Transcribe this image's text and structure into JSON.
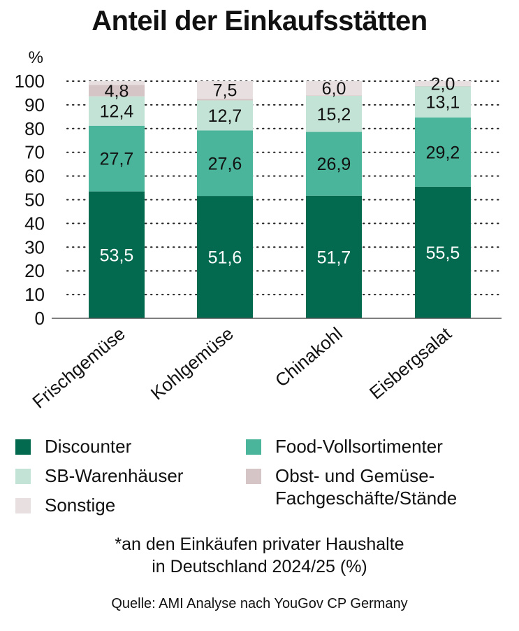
{
  "title": "Anteil der Einkaufsstätten",
  "footnote": [
    "*an den Einkäufen privater Haushalte",
    "in Deutschland 2024/25 (%)"
  ],
  "source": "Quelle: AMI Analyse nach YouGov CP Germany",
  "chart_data": {
    "type": "bar",
    "stacked": true,
    "title": "Anteil der Einkaufsstätten",
    "ylabel": "%",
    "xlabel": "",
    "ylim": [
      0,
      100
    ],
    "yticks": [
      0,
      10,
      20,
      30,
      40,
      50,
      60,
      70,
      80,
      90,
      100
    ],
    "grid": true,
    "legend_position": "bottom",
    "categories": [
      "Frischgemüse",
      "Kohlgemüse",
      "Chinakohl",
      "Eisbergsalat"
    ],
    "series": [
      {
        "name": "Discounter",
        "color": "#046a4f",
        "label_color": "#ffffff",
        "values": [
          53.5,
          51.6,
          51.7,
          55.5
        ],
        "labels": [
          "53,5",
          "51,6",
          "51,7",
          "55,5"
        ]
      },
      {
        "name": "Food-Vollsortimenter",
        "color": "#4ab59a",
        "label_color": "#111111",
        "values": [
          27.7,
          27.6,
          26.9,
          29.2
        ],
        "labels": [
          "27,7",
          "27,6",
          "26,9",
          "29,2"
        ]
      },
      {
        "name": "SB-Warenhäuser",
        "color": "#c3e3d6",
        "label_color": "#111111",
        "values": [
          12.4,
          12.7,
          15.2,
          13.1
        ],
        "labels": [
          "12,4",
          "12,7",
          "15,2",
          "13,1"
        ]
      },
      {
        "name": "Obst- und Gemüse-Fachgeschäfte/Stände",
        "color": "#d6c5c6",
        "label_color": "#111111",
        "values": [
          4.8,
          0.6,
          0.2,
          0.2
        ],
        "labels": [
          "4,8",
          "",
          "",
          ""
        ]
      },
      {
        "name": "Sonstige",
        "color": "#e8dfe1",
        "label_color": "#111111",
        "values": [
          1.6,
          7.5,
          6.0,
          2.0
        ],
        "labels": [
          "",
          "7,5",
          "6,0",
          "2,0"
        ]
      }
    ]
  },
  "legend": [
    {
      "label": "Discounter",
      "color": "#046a4f"
    },
    {
      "label": "Food-Vollsortimenter",
      "color": "#4ab59a"
    },
    {
      "label": "SB-Warenhäuser",
      "color": "#c3e3d6"
    },
    {
      "label": "Obst- und Gemüse-",
      "label2": "Fachgeschäfte/Stände",
      "color": "#d6c5c6"
    },
    {
      "label": "Sonstige",
      "color": "#e8dfe1"
    }
  ]
}
